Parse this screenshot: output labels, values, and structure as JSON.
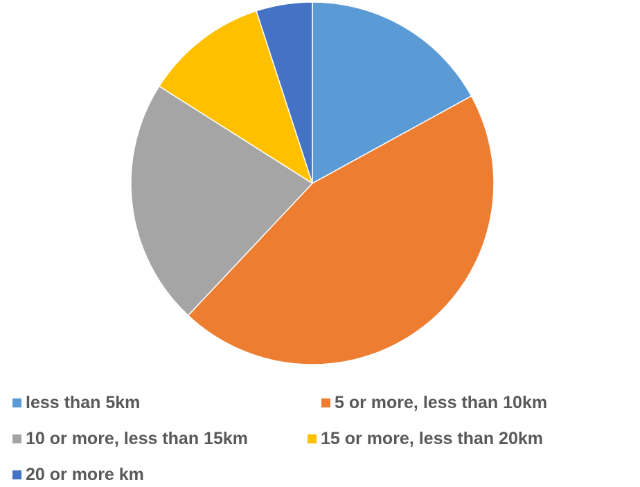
{
  "chart_data": {
    "type": "pie",
    "title": "",
    "legend_position": "bottom",
    "categories": [
      "less than 5km",
      "5 or more, less than 10km",
      "10 or more, less than 15km",
      "15 or more, less than 20km",
      "20 or more km"
    ],
    "values": [
      17,
      45,
      22,
      11,
      5
    ],
    "unit": "%",
    "colors": [
      "#5b9bd5",
      "#ed7d31",
      "#a5a5a5",
      "#ffc000",
      "#4472c4"
    ],
    "start_angle_deg": 0,
    "direction": "clockwise"
  }
}
